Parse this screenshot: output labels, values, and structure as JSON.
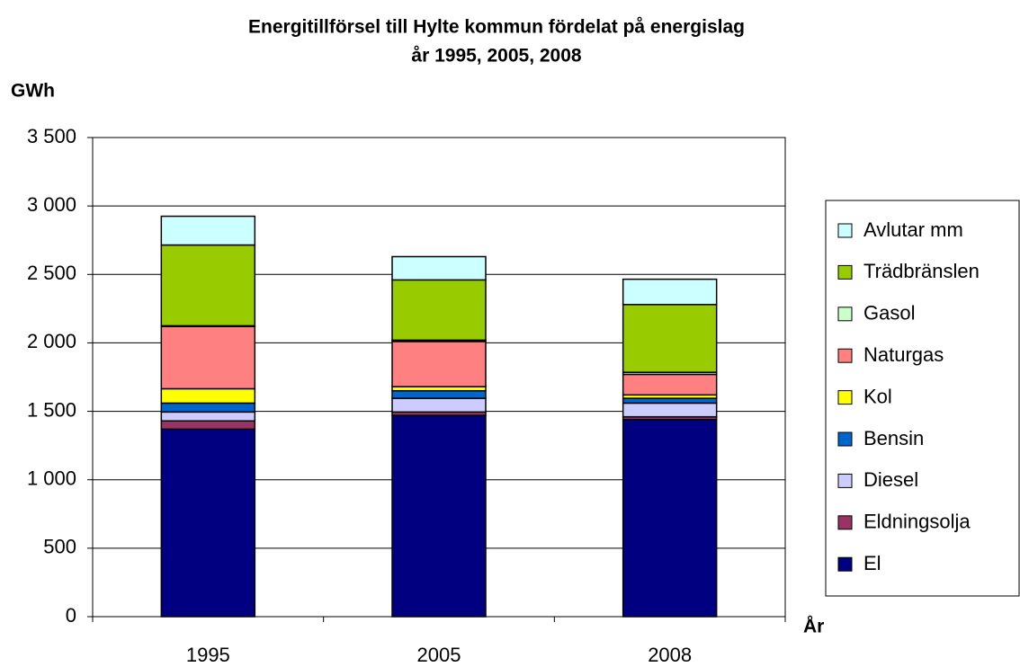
{
  "chart_data": {
    "type": "stacked_bar",
    "title": [
      "Energitillförsel till Hylte kommun fördelat på energislag",
      "år 1995, 2005, 2008"
    ],
    "y_label": "GWh",
    "x_label": "År",
    "categories": [
      "1995",
      "2005",
      "2008"
    ],
    "series": [
      {
        "name": "El",
        "color": "#000080",
        "values": [
          1370,
          1470,
          1440
        ]
      },
      {
        "name": "Eldningsolja",
        "color": "#993366",
        "values": [
          60,
          25,
          20
        ]
      },
      {
        "name": "Diesel",
        "color": "#ccccff",
        "values": [
          65,
          100,
          100
        ]
      },
      {
        "name": "Bensin",
        "color": "#0066cc",
        "values": [
          65,
          55,
          35
        ]
      },
      {
        "name": "Kol",
        "color": "#ffff00",
        "values": [
          105,
          30,
          25
        ]
      },
      {
        "name": "Naturgas",
        "color": "#ff8080",
        "values": [
          455,
          330,
          150
        ]
      },
      {
        "name": "Gasol",
        "color": "#ccffcc",
        "values": [
          5,
          10,
          15
        ]
      },
      {
        "name": "Trädbränslen",
        "color": "#99cc00",
        "values": [
          590,
          440,
          495
        ]
      },
      {
        "name": "Avlutar mm",
        "color": "#ccffff",
        "values": [
          210,
          170,
          185
        ]
      }
    ],
    "ylim": [
      0,
      3500
    ],
    "yticks": [
      0,
      500,
      {
        "value": 1000,
        "label": "1 000"
      },
      {
        "value": 1500,
        "label": "1 500"
      },
      {
        "value": 2000,
        "label": "2 000"
      },
      {
        "value": 2500,
        "label": "2 500"
      },
      {
        "value": 3000,
        "label": "3 000"
      },
      {
        "value": 3500,
        "label": "3 500"
      }
    ],
    "grid": true,
    "legend": "right"
  }
}
